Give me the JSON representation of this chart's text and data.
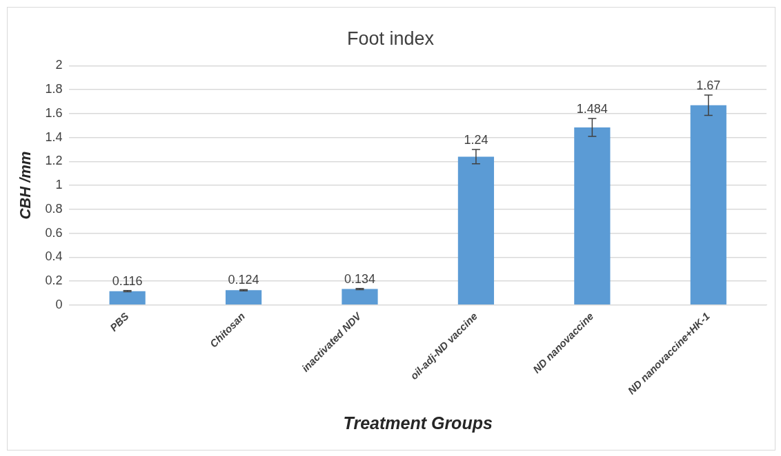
{
  "chart_data": {
    "type": "bar",
    "title": "Foot index",
    "xlabel": "Treatment Groups",
    "ylabel": "CBH /mm",
    "categories": [
      "PBS",
      "Chitosan",
      "inactivated NDV",
      "oil-adj-ND vaccine",
      "ND nanovaccine",
      "ND nanovaccine+HK-1"
    ],
    "values": [
      0.116,
      0.124,
      0.134,
      1.24,
      1.484,
      1.67
    ],
    "errors": [
      0.005,
      0.005,
      0.005,
      0.06,
      0.075,
      0.085
    ],
    "color": "#5b9bd5",
    "data_labels": true,
    "ylim": [
      0,
      2
    ],
    "yticks": [
      0,
      0.2,
      0.4,
      0.6,
      0.8,
      1,
      1.2,
      1.4,
      1.6,
      1.8,
      2
    ],
    "grid": "y",
    "legend": false
  }
}
